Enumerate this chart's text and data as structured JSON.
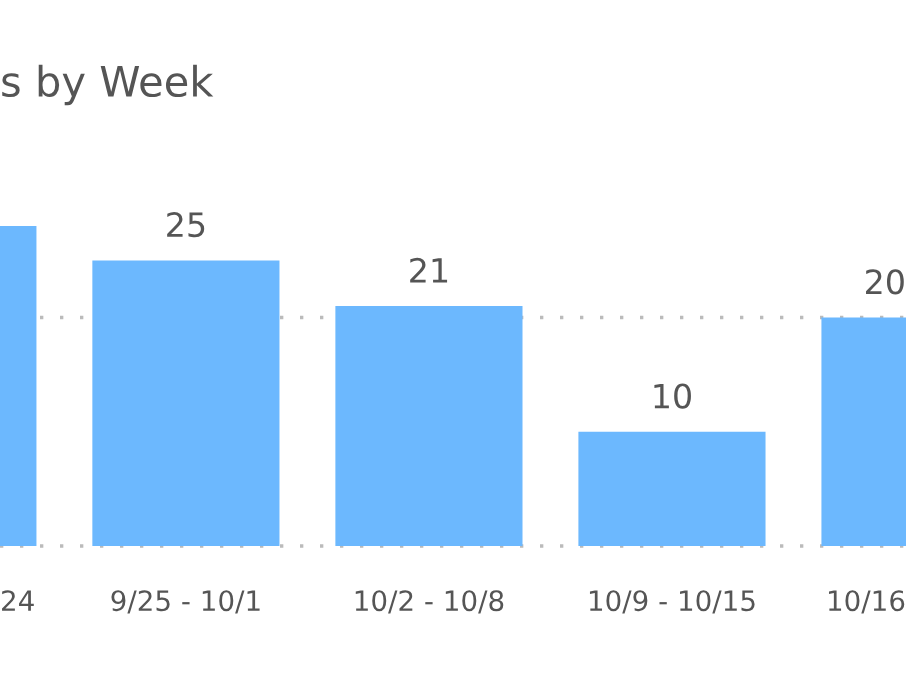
{
  "chart_data": {
    "type": "bar",
    "title": "s by Week",
    "categories": [
      "24",
      "9/25 - 10/1",
      "10/2 - 10/8",
      "10/9 - 10/15",
      "10/16"
    ],
    "values": [
      28,
      25,
      21,
      10,
      20
    ],
    "value_labels": [
      null,
      "25",
      "21",
      "10",
      "20"
    ],
    "color": "#6cb8fe",
    "ref_lines": [
      {
        "axis": "y",
        "value": 0,
        "color": "#bbbbbb",
        "line_style": "dotted"
      },
      {
        "axis": "y",
        "value": 20,
        "color": "#bbbbbb",
        "line_style": "dotted"
      }
    ],
    "tick_labels": "x",
    "legend": false
  }
}
